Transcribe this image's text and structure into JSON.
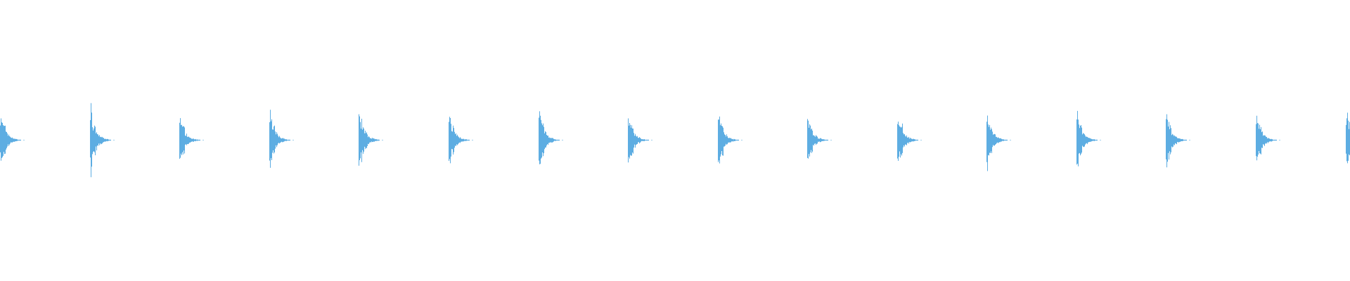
{
  "waveform": {
    "color": "#5dade2",
    "background": "#ffffff",
    "channels": 1,
    "hits": [
      {
        "onset": 0.0,
        "peak": 0.225
      },
      {
        "onset": 0.0667,
        "peak": 0.245
      },
      {
        "onset": 0.133,
        "peak": 0.205
      },
      {
        "onset": 0.1995,
        "peak": 0.228
      },
      {
        "onset": 0.2656,
        "peak": 0.25
      },
      {
        "onset": 0.3323,
        "peak": 0.215
      },
      {
        "onset": 0.399,
        "peak": 0.24
      },
      {
        "onset": 0.4651,
        "peak": 0.21
      },
      {
        "onset": 0.5318,
        "peak": 0.232
      },
      {
        "onset": 0.5979,
        "peak": 0.195
      },
      {
        "onset": 0.6646,
        "peak": 0.238
      },
      {
        "onset": 0.7307,
        "peak": 0.225
      },
      {
        "onset": 0.7974,
        "peak": 0.232
      },
      {
        "onset": 0.8635,
        "peak": 0.228
      },
      {
        "onset": 0.9302,
        "peak": 0.228
      },
      {
        "onset": 0.9969,
        "peak": 0.245
      }
    ]
  }
}
